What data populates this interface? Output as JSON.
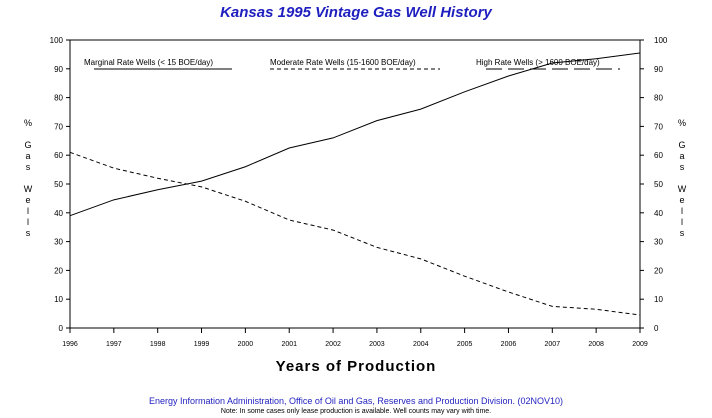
{
  "chart_data": {
    "type": "line",
    "title": "Kansas 1995 Vintage Gas Well History",
    "xlabel": "Years of Production",
    "ylabel": "% Gas Wells",
    "x": [
      1996,
      1997,
      1998,
      1999,
      2000,
      2001,
      2002,
      2003,
      2004,
      2005,
      2006,
      2007,
      2008,
      2009
    ],
    "xlim": [
      1996,
      2009
    ],
    "ylim": [
      0,
      100
    ],
    "yticks": [
      0,
      10,
      20,
      30,
      40,
      50,
      60,
      70,
      80,
      90,
      100
    ],
    "series": [
      {
        "name": "Marginal Rate Wells (<  15 BOE/day)",
        "style": "solid",
        "values": [
          39,
          44.5,
          48,
          51,
          56,
          62.5,
          66,
          72,
          76,
          82,
          87.5,
          92,
          93.5,
          95.5
        ]
      },
      {
        "name": "Moderate Rate Wells (15-1600 BOE/day)",
        "style": "short-dash",
        "values": [
          61,
          55.5,
          52,
          49,
          44,
          37.5,
          34,
          28,
          24,
          18,
          12.5,
          7.5,
          6.5,
          4.5
        ]
      },
      {
        "name": "High Rate Wells (> 1600 BOE/day)",
        "style": "long-dash",
        "values": [
          0,
          0,
          0,
          0,
          0,
          0,
          0,
          0,
          0,
          0,
          0,
          0,
          0,
          0
        ]
      }
    ],
    "grid": false,
    "legend_position": "top"
  },
  "footer": {
    "source": "Energy Information Administration, Office of Oil and Gas, Reserves and Production Division. (02NOV10)",
    "note": "Note: In some cases only lease production is available. Well counts may vary with time."
  },
  "colors": {
    "title": "#1f1fbf",
    "footer": "#1f1fbf",
    "lines": "#000000"
  }
}
